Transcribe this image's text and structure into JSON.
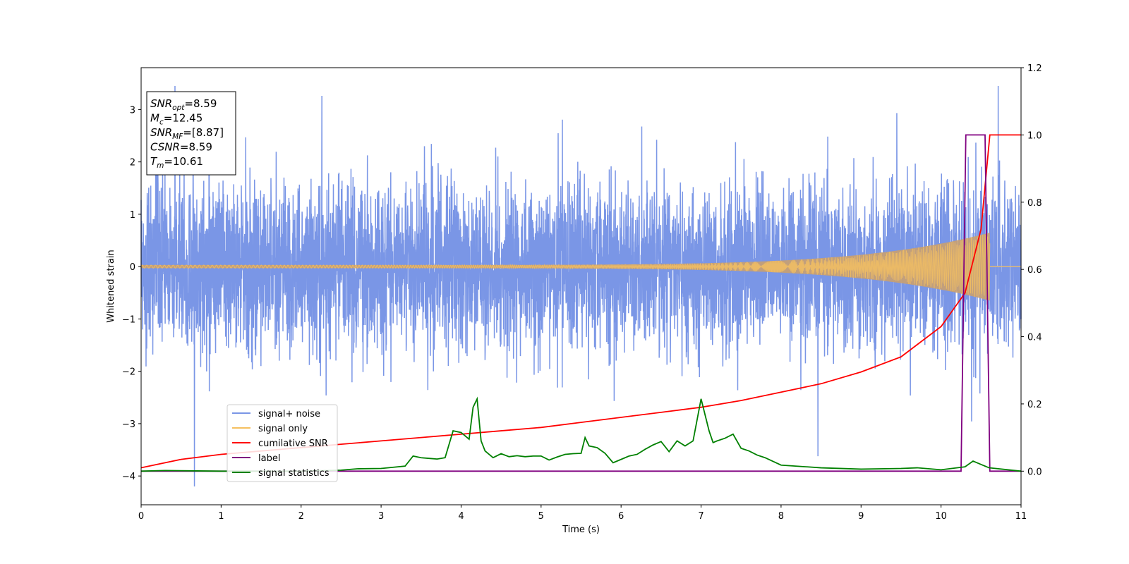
{
  "chart_data": {
    "type": "line",
    "xlabel": "Time (s)",
    "ylabel": "Whitened strain",
    "xlim": [
      0,
      11
    ],
    "ylim": [
      -4.55,
      3.8
    ],
    "y2lim": [
      -0.1,
      1.2
    ],
    "xticks": [
      "0",
      "1",
      "2",
      "3",
      "4",
      "5",
      "6",
      "7",
      "8",
      "9",
      "10",
      "11"
    ],
    "yticks": [
      "−4",
      "−3",
      "−2",
      "−1",
      "0",
      "1",
      "2",
      "3"
    ],
    "y2ticks": [
      "0.0",
      "0.2",
      "0.4",
      "0.6",
      "0.8",
      "1.0",
      "1.2"
    ],
    "grid": false,
    "legend_position": "lower-left",
    "info_box": {
      "position": "top-left",
      "lines": [
        {
          "sym": "SNR",
          "sub": "opt",
          "text": "=8.59"
        },
        {
          "sym": "M",
          "sub": "c",
          "text": "=12.45"
        },
        {
          "sym": "SNR",
          "sub": "MF",
          "text": "=[8.87]"
        },
        {
          "sym": "CSNR",
          "sub": "",
          "text": "=8.59"
        },
        {
          "sym": "T",
          "sub": "m",
          "text": "=10.61"
        }
      ]
    },
    "series": [
      {
        "name": "signal+ noise",
        "axis": "left",
        "color": "#7a96e6",
        "kind": "noise",
        "description_values": {
          "envelope_min": -4.2,
          "envelope_max": 3.45,
          "typical_amplitude": 1.9,
          "duration": 11
        }
      },
      {
        "name": "signal only",
        "axis": "left",
        "color": "#f5c060",
        "fill_color": "#c9a070",
        "kind": "chirp",
        "chirp": {
          "start": 0.0,
          "end": 10.61,
          "amp_start": 0.03,
          "amp_end": 0.65
        }
      },
      {
        "name": "cumilative SNR",
        "axis": "right",
        "color": "#ff0000",
        "kind": "line",
        "x": [
          0,
          0.5,
          1,
          1.5,
          2,
          2.5,
          3,
          3.5,
          4,
          4.5,
          5,
          5.5,
          6,
          6.5,
          7,
          7.5,
          8,
          8.5,
          9,
          9.5,
          10,
          10.3,
          10.5,
          10.61,
          11
        ],
        "y": [
          0.01,
          0.035,
          0.05,
          0.06,
          0.07,
          0.08,
          0.09,
          0.1,
          0.11,
          0.12,
          0.13,
          0.145,
          0.16,
          0.175,
          0.19,
          0.21,
          0.235,
          0.26,
          0.295,
          0.34,
          0.43,
          0.53,
          0.72,
          1.0,
          1.0
        ]
      },
      {
        "name": "label",
        "axis": "right",
        "color": "#800080",
        "kind": "line",
        "x": [
          0,
          10.25,
          10.31,
          10.55,
          10.61,
          11
        ],
        "y": [
          0,
          0,
          1,
          1,
          0,
          0
        ]
      },
      {
        "name": "signal statistics",
        "axis": "right",
        "color": "#008000",
        "kind": "line",
        "x": [
          0,
          0.3,
          0.6,
          1,
          1.5,
          2,
          2.5,
          2.7,
          3,
          3.3,
          3.4,
          3.5,
          3.6,
          3.7,
          3.8,
          3.9,
          4.0,
          4.1,
          4.15,
          4.2,
          4.25,
          4.3,
          4.4,
          4.5,
          4.6,
          4.7,
          4.8,
          4.9,
          5.0,
          5.1,
          5.2,
          5.3,
          5.4,
          5.5,
          5.55,
          5.6,
          5.7,
          5.8,
          5.9,
          6.0,
          6.1,
          6.2,
          6.3,
          6.4,
          6.5,
          6.6,
          6.7,
          6.8,
          6.9,
          7.0,
          7.1,
          7.15,
          7.2,
          7.3,
          7.4,
          7.5,
          7.6,
          7.7,
          7.8,
          8.0,
          8.5,
          9.0,
          9.5,
          9.7,
          10.0,
          10.3,
          10.4,
          10.5,
          10.6,
          11
        ],
        "y": [
          0.0,
          0.002,
          0.001,
          0.0,
          0.0,
          0.0,
          0.003,
          0.007,
          0.008,
          0.015,
          0.045,
          0.04,
          0.038,
          0.036,
          0.04,
          0.12,
          0.115,
          0.095,
          0.19,
          0.215,
          0.09,
          0.06,
          0.04,
          0.052,
          0.043,
          0.046,
          0.043,
          0.045,
          0.045,
          0.033,
          0.042,
          0.05,
          0.052,
          0.053,
          0.1,
          0.075,
          0.07,
          0.053,
          0.025,
          0.035,
          0.045,
          0.05,
          0.065,
          0.078,
          0.088,
          0.058,
          0.09,
          0.075,
          0.09,
          0.215,
          0.12,
          0.085,
          0.09,
          0.098,
          0.11,
          0.068,
          0.06,
          0.048,
          0.04,
          0.018,
          0.01,
          0.006,
          0.008,
          0.01,
          0.004,
          0.013,
          0.03,
          0.02,
          0.01,
          0.0
        ]
      }
    ]
  }
}
